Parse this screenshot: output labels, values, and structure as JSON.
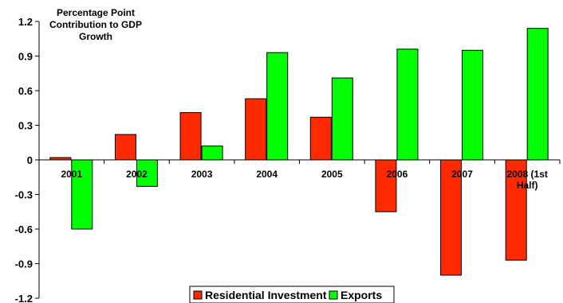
{
  "chart_data": {
    "type": "bar",
    "title_lines": [
      "Percentage Point",
      "Contribution to GDP",
      "Growth"
    ],
    "categories": [
      [
        "2001"
      ],
      [
        "2002"
      ],
      [
        "2003"
      ],
      [
        "2004"
      ],
      [
        "2005"
      ],
      [
        "2006"
      ],
      [
        "2007"
      ],
      [
        "2008 (1st",
        "Half)"
      ]
    ],
    "series": [
      {
        "name": "Residential Investment",
        "color": "#ff2a00",
        "values": [
          0.02,
          0.22,
          0.41,
          0.53,
          0.37,
          -0.45,
          -1.0,
          -0.87
        ]
      },
      {
        "name": "Exports",
        "color": "#00ff00",
        "values": [
          -0.6,
          -0.23,
          0.12,
          0.93,
          0.71,
          0.96,
          0.95,
          1.14
        ]
      }
    ],
    "ylim": [
      -1.2,
      1.2
    ],
    "yticks": [
      -1.2,
      -0.9,
      -0.6,
      -0.3,
      0,
      0.3,
      0.6,
      0.9,
      1.2
    ],
    "ytick_labels": [
      "-1.2",
      "-0.9",
      "-0.6",
      "-0.3",
      "0",
      "0.3",
      "0.6",
      "0.9",
      "1.2"
    ],
    "legend_position": "bottom-center",
    "grid": false
  }
}
